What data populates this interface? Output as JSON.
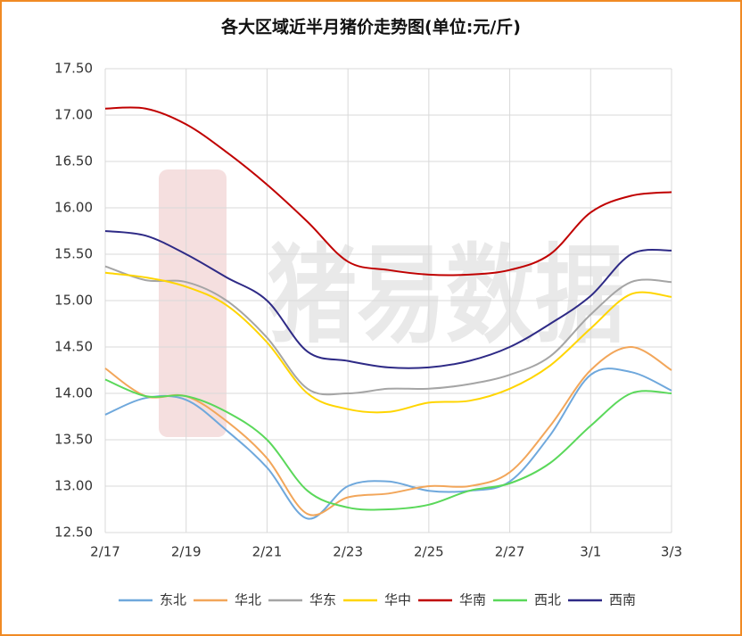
{
  "chart_data": {
    "type": "line",
    "title": "各大区域近半月猪价走势图(单位:元/斤)",
    "watermark": "猪易数据",
    "categories": [
      "2/17",
      null,
      "2/19",
      null,
      "2/21",
      null,
      "2/23",
      null,
      "2/25",
      null,
      "2/27",
      null,
      "3/1",
      null,
      "3/3"
    ],
    "ylim": [
      12.5,
      17.5
    ],
    "yticks": [
      {
        "value": 12.5,
        "label": "12.50"
      },
      {
        "value": 13,
        "label": "13.00"
      },
      {
        "value": 13.5,
        "label": "13.50"
      },
      {
        "value": 14,
        "label": "14.00"
      },
      {
        "value": 14.5,
        "label": "14.50"
      },
      {
        "value": 15,
        "label": "15.00"
      },
      {
        "value": 15.5,
        "label": "15.50"
      },
      {
        "value": 16,
        "label": "16.00"
      },
      {
        "value": 16.5,
        "label": "16.50"
      },
      {
        "value": 17,
        "label": "17.00"
      },
      {
        "value": 17.5,
        "label": "17.50"
      }
    ],
    "grid": true,
    "legend": "bottom",
    "series": [
      {
        "name": "东北",
        "color": "#6fa8dc",
        "values": [
          13.77,
          13.95,
          13.93,
          13.6,
          13.2,
          12.65,
          13.0,
          13.05,
          12.95,
          12.95,
          13.05,
          13.55,
          14.2,
          14.23,
          14.03
        ]
      },
      {
        "name": "华北",
        "color": "#f2a65a",
        "values": [
          14.27,
          13.97,
          13.97,
          13.7,
          13.3,
          12.7,
          12.88,
          12.92,
          13.0,
          13.0,
          13.15,
          13.65,
          14.25,
          14.5,
          14.25
        ]
      },
      {
        "name": "华东",
        "color": "#a5a5a5",
        "values": [
          15.37,
          15.22,
          15.2,
          15.0,
          14.6,
          14.05,
          14.0,
          14.05,
          14.05,
          14.1,
          14.2,
          14.4,
          14.85,
          15.2,
          15.2
        ]
      },
      {
        "name": "华中",
        "color": "#ffd500",
        "values": [
          15.3,
          15.25,
          15.15,
          14.95,
          14.55,
          14.0,
          13.83,
          13.8,
          13.9,
          13.92,
          14.05,
          14.3,
          14.7,
          15.07,
          15.04
        ]
      },
      {
        "name": "华南",
        "color": "#c00000",
        "values": [
          17.07,
          17.07,
          16.9,
          16.6,
          16.25,
          15.85,
          15.42,
          15.33,
          15.28,
          15.28,
          15.33,
          15.5,
          15.95,
          16.13,
          16.17
        ]
      },
      {
        "name": "西北",
        "color": "#5ad85a",
        "values": [
          14.15,
          13.97,
          13.97,
          13.8,
          13.5,
          12.95,
          12.77,
          12.75,
          12.8,
          12.95,
          13.03,
          13.25,
          13.65,
          14.0,
          14.0
        ]
      },
      {
        "name": "西南",
        "color": "#2e2a86",
        "values": [
          15.75,
          15.7,
          15.5,
          15.25,
          15.0,
          14.45,
          14.35,
          14.28,
          14.28,
          14.35,
          14.5,
          14.75,
          15.05,
          15.5,
          15.54
        ]
      }
    ]
  }
}
